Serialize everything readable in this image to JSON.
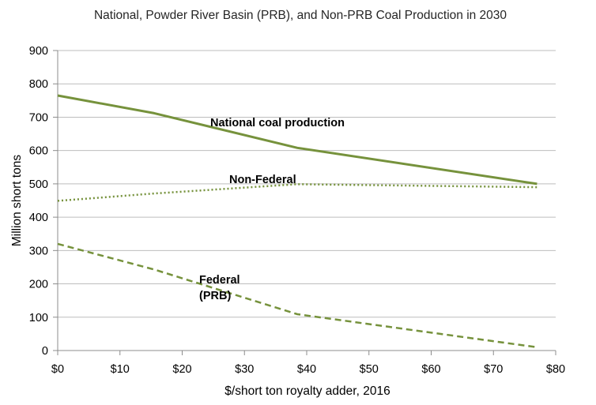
{
  "chart_data": {
    "type": "line",
    "title": "National, Powder River Basin (PRB), and Non-PRB Coal Production in 2030",
    "xlabel": "$/short ton royalty adder, 2016",
    "ylabel": "Million short tons",
    "xlim": [
      0,
      80
    ],
    "ylim": [
      0,
      900
    ],
    "grid": true,
    "x_ticks": [
      0,
      10,
      20,
      30,
      40,
      50,
      60,
      70,
      80
    ],
    "x_tick_labels": [
      "$0",
      "$10",
      "$20",
      "$30",
      "$40",
      "$50",
      "$60",
      "$70",
      "$80"
    ],
    "y_ticks": [
      0,
      100,
      200,
      300,
      400,
      500,
      600,
      700,
      800,
      900
    ],
    "y_tick_labels": [
      "0",
      "100",
      "200",
      "300",
      "400",
      "500",
      "600",
      "700",
      "800",
      "900"
    ],
    "series": [
      {
        "name": "National coal production",
        "style": "solid",
        "color": "#76923c",
        "points": [
          [
            0,
            765
          ],
          [
            15.5,
            712
          ],
          [
            38.5,
            608
          ],
          [
            77,
            500
          ]
        ]
      },
      {
        "name": "Non-Federal",
        "style": "dotted",
        "color": "#76923c",
        "points": [
          [
            0,
            449
          ],
          [
            15.5,
            471
          ],
          [
            38.5,
            499
          ],
          [
            77,
            490
          ]
        ]
      },
      {
        "name": "Federal\n(PRB)",
        "style": "dashed",
        "color": "#76923c",
        "points": [
          [
            0,
            320
          ],
          [
            15.5,
            243
          ],
          [
            38.5,
            109
          ],
          [
            77,
            10
          ]
        ]
      }
    ],
    "annotations": [
      {
        "text": "National coal production",
        "series": 0
      },
      {
        "text": "Non-Federal",
        "series": 1
      },
      {
        "lines": [
          "Federal",
          "(PRB)"
        ],
        "series": 2
      }
    ]
  }
}
